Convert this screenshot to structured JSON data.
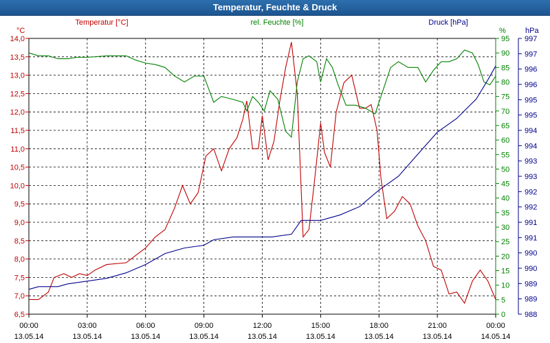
{
  "window_title": "Temperatur, Feuchte & Druck",
  "chart_data": {
    "type": "line",
    "title": "Temperatur, Feuchte & Druck",
    "x_ticks": [
      {
        "t": 0,
        "time": "00:00",
        "date": "13.05.14"
      },
      {
        "t": 3,
        "time": "03:00",
        "date": "13.05.14"
      },
      {
        "t": 6,
        "time": "06:00",
        "date": "13.05.14"
      },
      {
        "t": 9,
        "time": "09:00",
        "date": "13.05.14"
      },
      {
        "t": 12,
        "time": "12:00",
        "date": "13.05.14"
      },
      {
        "t": 15,
        "time": "15:00",
        "date": "13.05.14"
      },
      {
        "t": 18,
        "time": "18:00",
        "date": "13.05.14"
      },
      {
        "t": 21,
        "time": "21:00",
        "date": "13.05.14"
      },
      {
        "t": 24,
        "time": "00:00",
        "date": "14.05.14"
      }
    ],
    "xlim": [
      0,
      24
    ],
    "grid": true,
    "axes": {
      "temperature": {
        "unit": "°C",
        "ylim": [
          6.5,
          14.0
        ],
        "ticks": [
          "6,5",
          "7,0",
          "7,5",
          "8,0",
          "8,5",
          "9,0",
          "9,5",
          "10,0",
          "10,5",
          "11,0",
          "11,5",
          "12,0",
          "12,5",
          "13,0",
          "13,5",
          "14,0"
        ],
        "color": "#c00000"
      },
      "humidity": {
        "unit": "%",
        "ylim": [
          0,
          95
        ],
        "ticks": [
          "0",
          "5",
          "10",
          "15",
          "20",
          "25",
          "30",
          "35",
          "40",
          "45",
          "50",
          "55",
          "60",
          "65",
          "70",
          "75",
          "80",
          "85",
          "90",
          "95"
        ],
        "color": "#008000"
      },
      "pressure": {
        "unit": "hPa",
        "ylim": [
          988,
          998
        ],
        "ticks": [
          "988",
          "989",
          "989",
          "990",
          "990",
          "991",
          "991",
          "992",
          "992",
          "993",
          "993",
          "994",
          "994",
          "995",
          "995",
          "996",
          "996",
          "997",
          "997"
        ],
        "color": "#00008b"
      }
    },
    "series": [
      {
        "name": "Temperatur [°C]",
        "axis": "temperature",
        "color": "#c00000",
        "points": [
          [
            0,
            6.9
          ],
          [
            0.5,
            6.9
          ],
          [
            1.0,
            7.1
          ],
          [
            1.3,
            7.5
          ],
          [
            1.8,
            7.6
          ],
          [
            2.2,
            7.5
          ],
          [
            2.6,
            7.6
          ],
          [
            3.0,
            7.55
          ],
          [
            3.4,
            7.7
          ],
          [
            4.0,
            7.85
          ],
          [
            5.0,
            7.9
          ],
          [
            5.5,
            8.1
          ],
          [
            6.0,
            8.3
          ],
          [
            6.5,
            8.6
          ],
          [
            7.0,
            8.8
          ],
          [
            7.5,
            9.4
          ],
          [
            7.9,
            10.0
          ],
          [
            8.3,
            9.5
          ],
          [
            8.7,
            9.8
          ],
          [
            9.1,
            10.8
          ],
          [
            9.5,
            11.0
          ],
          [
            9.9,
            10.4
          ],
          [
            10.3,
            11.0
          ],
          [
            10.7,
            11.3
          ],
          [
            11.0,
            11.8
          ],
          [
            11.2,
            12.3
          ],
          [
            11.5,
            11.0
          ],
          [
            11.8,
            11.0
          ],
          [
            12.0,
            11.9
          ],
          [
            12.3,
            10.7
          ],
          [
            12.6,
            11.2
          ],
          [
            12.9,
            12.3
          ],
          [
            13.2,
            13.2
          ],
          [
            13.5,
            13.9
          ],
          [
            13.8,
            12.5
          ],
          [
            14.1,
            8.6
          ],
          [
            14.4,
            8.8
          ],
          [
            14.7,
            10.2
          ],
          [
            15.0,
            11.7
          ],
          [
            15.2,
            10.9
          ],
          [
            15.5,
            10.5
          ],
          [
            15.8,
            12.0
          ],
          [
            16.2,
            12.8
          ],
          [
            16.6,
            13.0
          ],
          [
            17.0,
            12.1
          ],
          [
            17.3,
            12.1
          ],
          [
            17.6,
            12.2
          ],
          [
            17.9,
            11.5
          ],
          [
            18.1,
            10.2
          ],
          [
            18.4,
            9.1
          ],
          [
            18.8,
            9.3
          ],
          [
            19.2,
            9.7
          ],
          [
            19.6,
            9.5
          ],
          [
            20.0,
            8.9
          ],
          [
            20.4,
            8.5
          ],
          [
            20.8,
            7.8
          ],
          [
            21.2,
            7.7
          ],
          [
            21.6,
            7.05
          ],
          [
            22.0,
            7.1
          ],
          [
            22.4,
            6.8
          ],
          [
            22.8,
            7.4
          ],
          [
            23.2,
            7.7
          ],
          [
            23.6,
            7.4
          ],
          [
            24.0,
            6.9
          ]
        ]
      },
      {
        "name": "rel. Feuchte [%]",
        "axis": "humidity",
        "color": "#008000",
        "points": [
          [
            0,
            90
          ],
          [
            0.5,
            89
          ],
          [
            1.0,
            89
          ],
          [
            1.5,
            88
          ],
          [
            2.0,
            88
          ],
          [
            2.5,
            88.5
          ],
          [
            3.0,
            88.5
          ],
          [
            4.0,
            89
          ],
          [
            5.0,
            89
          ],
          [
            5.5,
            87.5
          ],
          [
            6.0,
            86.5
          ],
          [
            6.5,
            86
          ],
          [
            7.0,
            85
          ],
          [
            7.5,
            82
          ],
          [
            8.0,
            80
          ],
          [
            8.5,
            82
          ],
          [
            9.0,
            82
          ],
          [
            9.5,
            73
          ],
          [
            9.9,
            75
          ],
          [
            10.5,
            74
          ],
          [
            11.0,
            73
          ],
          [
            11.2,
            70
          ],
          [
            11.5,
            75
          ],
          [
            11.8,
            73
          ],
          [
            12.1,
            70
          ],
          [
            12.4,
            77
          ],
          [
            12.8,
            74
          ],
          [
            13.2,
            63
          ],
          [
            13.5,
            61
          ],
          [
            13.8,
            80
          ],
          [
            14.1,
            88
          ],
          [
            14.4,
            89
          ],
          [
            14.8,
            87
          ],
          [
            15.0,
            80
          ],
          [
            15.3,
            88
          ],
          [
            15.6,
            85
          ],
          [
            15.9,
            79
          ],
          [
            16.3,
            72
          ],
          [
            16.8,
            72
          ],
          [
            17.3,
            71
          ],
          [
            17.8,
            69
          ],
          [
            18.2,
            77
          ],
          [
            18.6,
            85
          ],
          [
            19.0,
            87
          ],
          [
            19.5,
            85
          ],
          [
            20.0,
            85
          ],
          [
            20.4,
            80
          ],
          [
            20.8,
            84
          ],
          [
            21.2,
            87
          ],
          [
            21.6,
            87
          ],
          [
            22.0,
            88
          ],
          [
            22.4,
            91
          ],
          [
            22.8,
            90
          ],
          [
            23.1,
            86
          ],
          [
            23.4,
            80
          ],
          [
            23.7,
            79
          ],
          [
            24.0,
            82
          ]
        ]
      },
      {
        "name": "Druck [hPa]",
        "axis": "pressure",
        "color": "#00008b",
        "points": [
          [
            0,
            988.9
          ],
          [
            0.5,
            989.0
          ],
          [
            1.5,
            989.0
          ],
          [
            2.0,
            989.1
          ],
          [
            3.0,
            989.2
          ],
          [
            4.0,
            989.3
          ],
          [
            5.0,
            989.5
          ],
          [
            6.0,
            989.8
          ],
          [
            7.0,
            990.2
          ],
          [
            8.0,
            990.4
          ],
          [
            9.0,
            990.5
          ],
          [
            9.5,
            990.7
          ],
          [
            10.5,
            990.8
          ],
          [
            11.5,
            990.8
          ],
          [
            12.0,
            990.8
          ],
          [
            12.5,
            990.8
          ],
          [
            13.5,
            990.9
          ],
          [
            14.0,
            991.4
          ],
          [
            15.0,
            991.4
          ],
          [
            16.0,
            991.6
          ],
          [
            17.0,
            991.9
          ],
          [
            18.0,
            992.5
          ],
          [
            19.0,
            993.0
          ],
          [
            20.0,
            993.8
          ],
          [
            21.0,
            994.6
          ],
          [
            22.0,
            995.1
          ],
          [
            23.0,
            995.8
          ],
          [
            23.6,
            996.5
          ],
          [
            24.0,
            997.0
          ]
        ]
      }
    ],
    "legend": {
      "placement": "top",
      "items": [
        "Temperatur [°C]",
        "rel. Feuchte [%]",
        "Druck [hPa]"
      ]
    }
  }
}
